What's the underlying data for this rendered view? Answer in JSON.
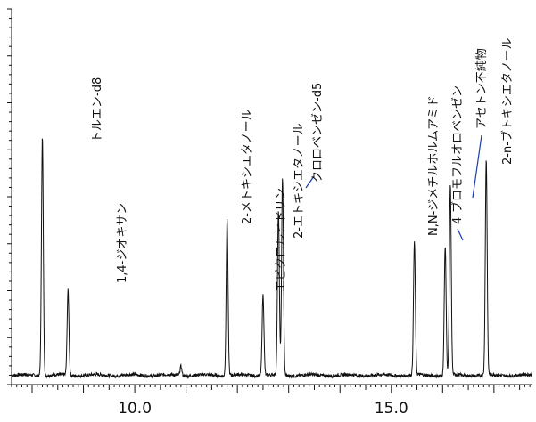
{
  "chart_data": {
    "type": "line",
    "title": "",
    "xlabel": "",
    "ylabel": "",
    "xlim": [
      7.6,
      17.75
    ],
    "ylim": [
      0,
      100
    ],
    "x_ticks": [
      {
        "value": 10.0,
        "label": "10.0"
      },
      {
        "value": 15.0,
        "label": "15.0"
      }
    ],
    "baseline": 2.5,
    "peaks": [
      {
        "name": "トルエン-d8",
        "x": 8.2,
        "height": 66,
        "label_pos": "above"
      },
      {
        "name": "1,4-ジオキサン",
        "x": 8.7,
        "height": 25,
        "label_pos": "above"
      },
      {
        "name": "",
        "x": 10.9,
        "height": 5,
        "label_pos": "none"
      },
      {
        "name": "2-メトキシエタノール",
        "x": 11.8,
        "height": 44,
        "label_pos": "above"
      },
      {
        "name": "エピクロルヒドリン",
        "x": 12.5,
        "height": 24,
        "label_pos": "above"
      },
      {
        "name": "2-エトキシエタノール",
        "x": 12.8,
        "height": 46,
        "label_pos": "above"
      },
      {
        "name": "クロロベンゼン-d5",
        "x": 12.88,
        "height": 55,
        "label_pos": "leader"
      },
      {
        "name": "N,N-ジメチルホルムアミド",
        "x": 15.45,
        "height": 38,
        "label_pos": "above"
      },
      {
        "name": "4-ブロモフルオロベンゼン",
        "x": 16.05,
        "height": 37,
        "label_pos": "leader"
      },
      {
        "name": "アセトン不純物",
        "x": 16.15,
        "height": 53,
        "label_pos": "leader"
      },
      {
        "name": "2-n-ブトキシエタノール",
        "x": 16.85,
        "height": 60,
        "label_pos": "above"
      }
    ]
  }
}
